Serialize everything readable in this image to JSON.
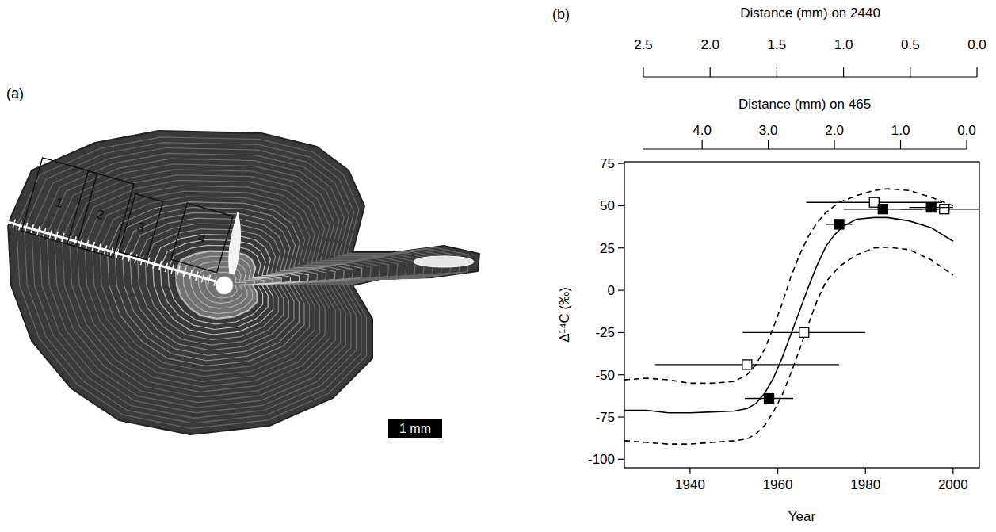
{
  "chart_data": {
    "type": "scatter",
    "panel_label": "(b)",
    "xlabel": "Year",
    "ylabel": "Δ¹⁴C (‰)",
    "xlim": [
      1925,
      2006
    ],
    "xticks": [
      1940,
      1960,
      1980,
      2000
    ],
    "ylim": [
      -105,
      76
    ],
    "yticks": [
      -100,
      -75,
      -50,
      -25,
      0,
      25,
      50,
      75
    ],
    "grid": false,
    "top_axes": [
      {
        "label": "Distance (mm) on 2440",
        "lim": [
          2.5,
          0.0
        ],
        "ticks": [
          2.5,
          {
            "value": 2.0,
            "label": "2.0"
          },
          1.5,
          {
            "value": 1.0,
            "label": "1.0"
          },
          0.5,
          {
            "value": 0.0,
            "label": "0.0"
          }
        ]
      },
      {
        "label": "Distance (mm) on 465",
        "lim": [
          4.9,
          0.0
        ],
        "ticks": [
          {
            "value": 4.0,
            "label": "4.0"
          },
          {
            "value": 3.0,
            "label": "3.0"
          },
          {
            "value": 2.0,
            "label": "2.0"
          },
          {
            "value": 1.0,
            "label": "1.0"
          },
          {
            "value": 0.0,
            "label": "0.0"
          }
        ]
      }
    ],
    "series": [
      {
        "type": "line",
        "line_style": "solid",
        "color": "#000000",
        "x": [
          1925,
          1930,
          1935,
          1940,
          1945,
          1950,
          1953,
          1955,
          1957,
          1959,
          1961,
          1963,
          1965,
          1967,
          1969,
          1971,
          1973,
          1975,
          1978,
          1982,
          1985,
          1990,
          1995,
          2000
        ],
        "values": [
          -71,
          -71,
          -72.5,
          -72.5,
          -72,
          -71.5,
          -70,
          -67,
          -61,
          -52,
          -40,
          -26,
          -12,
          2,
          15,
          26,
          33,
          38,
          42,
          43,
          43,
          41,
          37,
          29
        ]
      },
      {
        "type": "line",
        "line_style": "dashed",
        "color": "#000000",
        "x": [
          1925,
          1930,
          1935,
          1940,
          1945,
          1950,
          1953,
          1955,
          1957,
          1959,
          1961,
          1963,
          1965,
          1967,
          1969,
          1971,
          1974,
          1978,
          1982,
          1985,
          1990,
          1995,
          2000
        ],
        "values": [
          -53,
          -52,
          -53,
          -55,
          -55,
          -54,
          -50,
          -44,
          -35,
          -22,
          -8,
          8,
          21,
          32,
          40,
          46,
          52,
          56,
          59,
          60,
          59,
          55,
          50
        ]
      },
      {
        "type": "line",
        "line_style": "dashed",
        "color": "#000000",
        "x": [
          1925,
          1930,
          1935,
          1940,
          1945,
          1950,
          1953,
          1955,
          1957,
          1959,
          1961,
          1963,
          1965,
          1967,
          1969,
          1971,
          1974,
          1978,
          1982,
          1985,
          1990,
          1995,
          2000
        ],
        "values": [
          -89,
          -90,
          -91,
          -91,
          -90,
          -89,
          -88,
          -85,
          -80,
          -72,
          -62,
          -49,
          -35,
          -20,
          -6,
          5,
          14,
          21,
          25,
          25.5,
          24,
          18,
          9
        ]
      },
      {
        "type": "scatter",
        "marker": "square-open",
        "color": "#000000",
        "x": [
          1953,
          1966,
          1982,
          1998
        ],
        "values": [
          -44,
          -25,
          52,
          48
        ],
        "x_errors": [
          21,
          14,
          15.5,
          10
        ]
      },
      {
        "type": "scatter",
        "marker": "square",
        "color": "#000000",
        "x": [
          1958,
          1974,
          1984,
          1995
        ],
        "values": [
          -64,
          39,
          48,
          49
        ],
        "x_errors": [
          5.5,
          3,
          9,
          5
        ]
      }
    ]
  },
  "photo": {
    "panel_label": "(a)",
    "boxes": [
      "1",
      "2",
      "3",
      "4"
    ],
    "scale_bar": "1 mm"
  }
}
